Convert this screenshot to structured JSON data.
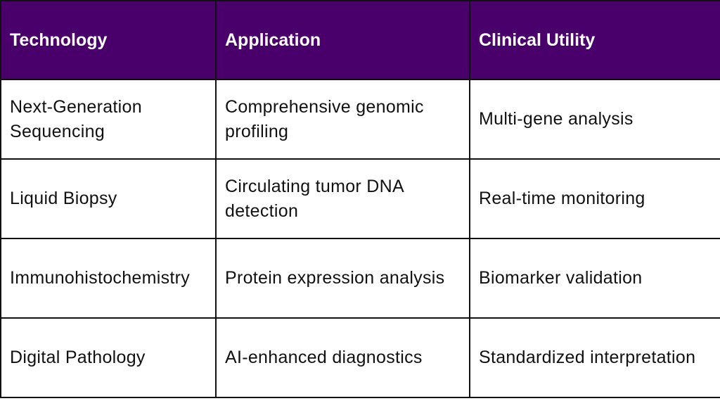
{
  "table": {
    "headers": [
      "Technology",
      "Application",
      "Clinical Utility"
    ],
    "rows": [
      [
        "Next-Generation Sequencing",
        "Comprehensive genomic profiling",
        "Multi-gene analysis"
      ],
      [
        "Liquid Biopsy",
        "Circulating tumor DNA detection",
        "Real-time monitoring"
      ],
      [
        "Immunohistochemistry",
        "Protein expression analysis",
        "Biomarker validation"
      ],
      [
        "Digital Pathology",
        "AI-enhanced diagnostics",
        "Standardized interpretation"
      ]
    ]
  },
  "colors": {
    "header_background": "#4a006b",
    "header_text": "#ffffff",
    "border": "#111111"
  }
}
